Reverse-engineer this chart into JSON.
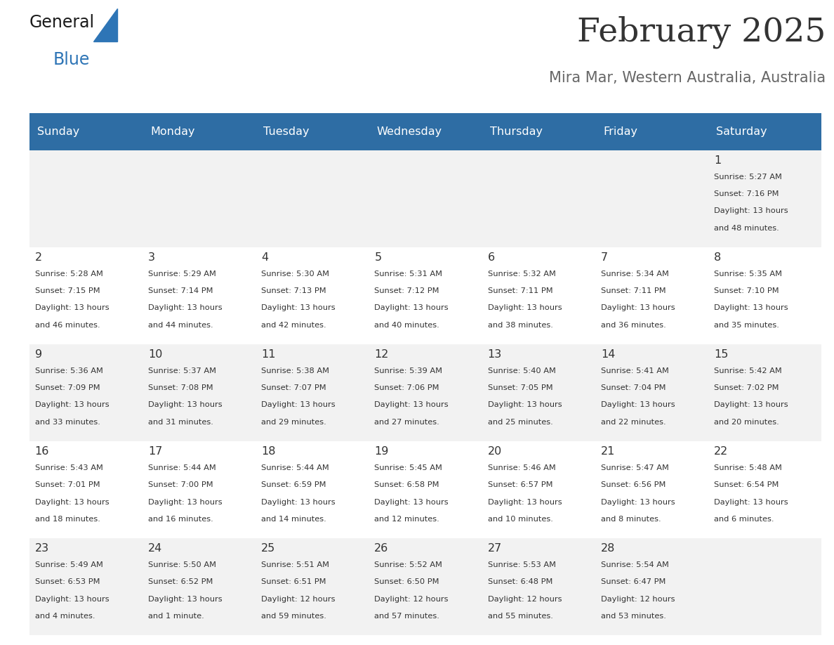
{
  "title": "February 2025",
  "subtitle": "Mira Mar, Western Australia, Australia",
  "days_of_week": [
    "Sunday",
    "Monday",
    "Tuesday",
    "Wednesday",
    "Thursday",
    "Friday",
    "Saturday"
  ],
  "header_bg": "#2E6DA4",
  "header_text_color": "#FFFFFF",
  "cell_bg_light": "#F2F2F2",
  "cell_bg_white": "#FFFFFF",
  "border_color": "#2E6DA4",
  "text_color": "#333333",
  "title_color": "#333333",
  "subtitle_color": "#666666",
  "logo_black": "#1a1a1a",
  "logo_blue": "#2E75B6",
  "weeks": [
    [
      {
        "day": null,
        "sunrise": null,
        "sunset": null,
        "daylight": null
      },
      {
        "day": null,
        "sunrise": null,
        "sunset": null,
        "daylight": null
      },
      {
        "day": null,
        "sunrise": null,
        "sunset": null,
        "daylight": null
      },
      {
        "day": null,
        "sunrise": null,
        "sunset": null,
        "daylight": null
      },
      {
        "day": null,
        "sunrise": null,
        "sunset": null,
        "daylight": null
      },
      {
        "day": null,
        "sunrise": null,
        "sunset": null,
        "daylight": null
      },
      {
        "day": 1,
        "sunrise": "5:27 AM",
        "sunset": "7:16 PM",
        "daylight": "13 hours\nand 48 minutes."
      }
    ],
    [
      {
        "day": 2,
        "sunrise": "5:28 AM",
        "sunset": "7:15 PM",
        "daylight": "13 hours\nand 46 minutes."
      },
      {
        "day": 3,
        "sunrise": "5:29 AM",
        "sunset": "7:14 PM",
        "daylight": "13 hours\nand 44 minutes."
      },
      {
        "day": 4,
        "sunrise": "5:30 AM",
        "sunset": "7:13 PM",
        "daylight": "13 hours\nand 42 minutes."
      },
      {
        "day": 5,
        "sunrise": "5:31 AM",
        "sunset": "7:12 PM",
        "daylight": "13 hours\nand 40 minutes."
      },
      {
        "day": 6,
        "sunrise": "5:32 AM",
        "sunset": "7:11 PM",
        "daylight": "13 hours\nand 38 minutes."
      },
      {
        "day": 7,
        "sunrise": "5:34 AM",
        "sunset": "7:11 PM",
        "daylight": "13 hours\nand 36 minutes."
      },
      {
        "day": 8,
        "sunrise": "5:35 AM",
        "sunset": "7:10 PM",
        "daylight": "13 hours\nand 35 minutes."
      }
    ],
    [
      {
        "day": 9,
        "sunrise": "5:36 AM",
        "sunset": "7:09 PM",
        "daylight": "13 hours\nand 33 minutes."
      },
      {
        "day": 10,
        "sunrise": "5:37 AM",
        "sunset": "7:08 PM",
        "daylight": "13 hours\nand 31 minutes."
      },
      {
        "day": 11,
        "sunrise": "5:38 AM",
        "sunset": "7:07 PM",
        "daylight": "13 hours\nand 29 minutes."
      },
      {
        "day": 12,
        "sunrise": "5:39 AM",
        "sunset": "7:06 PM",
        "daylight": "13 hours\nand 27 minutes."
      },
      {
        "day": 13,
        "sunrise": "5:40 AM",
        "sunset": "7:05 PM",
        "daylight": "13 hours\nand 25 minutes."
      },
      {
        "day": 14,
        "sunrise": "5:41 AM",
        "sunset": "7:04 PM",
        "daylight": "13 hours\nand 22 minutes."
      },
      {
        "day": 15,
        "sunrise": "5:42 AM",
        "sunset": "7:02 PM",
        "daylight": "13 hours\nand 20 minutes."
      }
    ],
    [
      {
        "day": 16,
        "sunrise": "5:43 AM",
        "sunset": "7:01 PM",
        "daylight": "13 hours\nand 18 minutes."
      },
      {
        "day": 17,
        "sunrise": "5:44 AM",
        "sunset": "7:00 PM",
        "daylight": "13 hours\nand 16 minutes."
      },
      {
        "day": 18,
        "sunrise": "5:44 AM",
        "sunset": "6:59 PM",
        "daylight": "13 hours\nand 14 minutes."
      },
      {
        "day": 19,
        "sunrise": "5:45 AM",
        "sunset": "6:58 PM",
        "daylight": "13 hours\nand 12 minutes."
      },
      {
        "day": 20,
        "sunrise": "5:46 AM",
        "sunset": "6:57 PM",
        "daylight": "13 hours\nand 10 minutes."
      },
      {
        "day": 21,
        "sunrise": "5:47 AM",
        "sunset": "6:56 PM",
        "daylight": "13 hours\nand 8 minutes."
      },
      {
        "day": 22,
        "sunrise": "5:48 AM",
        "sunset": "6:54 PM",
        "daylight": "13 hours\nand 6 minutes."
      }
    ],
    [
      {
        "day": 23,
        "sunrise": "5:49 AM",
        "sunset": "6:53 PM",
        "daylight": "13 hours\nand 4 minutes."
      },
      {
        "day": 24,
        "sunrise": "5:50 AM",
        "sunset": "6:52 PM",
        "daylight": "13 hours\nand 1 minute."
      },
      {
        "day": 25,
        "sunrise": "5:51 AM",
        "sunset": "6:51 PM",
        "daylight": "12 hours\nand 59 minutes."
      },
      {
        "day": 26,
        "sunrise": "5:52 AM",
        "sunset": "6:50 PM",
        "daylight": "12 hours\nand 57 minutes."
      },
      {
        "day": 27,
        "sunrise": "5:53 AM",
        "sunset": "6:48 PM",
        "daylight": "12 hours\nand 55 minutes."
      },
      {
        "day": 28,
        "sunrise": "5:54 AM",
        "sunset": "6:47 PM",
        "daylight": "12 hours\nand 53 minutes."
      },
      {
        "day": null,
        "sunrise": null,
        "sunset": null,
        "daylight": null
      }
    ]
  ]
}
